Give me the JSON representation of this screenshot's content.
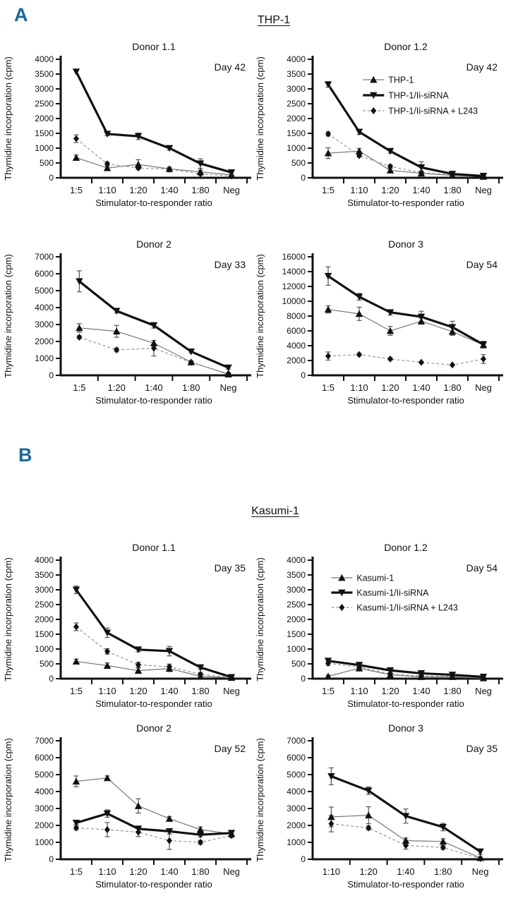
{
  "page": {
    "background": "#ffffff"
  },
  "colors": {
    "panel_letter": "#166a9a",
    "axis": "#111111",
    "thick": "#111111",
    "thin": "#777777",
    "dashed": "#979797",
    "marker": "#111111",
    "error": "#555555"
  },
  "panels": [
    {
      "letter": "A",
      "title": "THP-1"
    },
    {
      "letter": "B",
      "title": "Kasumi-1"
    }
  ],
  "axis_labels": {
    "x": "Stimulator-to-responder ratio",
    "y": "Thymidine incorporation (cpm)"
  },
  "chart_data": [
    {
      "type": "line",
      "panel": "A",
      "title": "Donor 1.1",
      "day": "Day 42",
      "xlabel": "Stimulator-to-responder ratio",
      "ylabel": "Thymidine incorporation (cpm)",
      "ylim": [
        0,
        4000
      ],
      "ystep": 500,
      "categories": [
        "1:5",
        "1:10",
        "1:20",
        "1:40",
        "1:80",
        "Neg"
      ],
      "series": [
        {
          "name": "THP-1",
          "style": "thin",
          "marker": "triangle-up",
          "values": [
            680,
            330,
            450,
            300,
            200,
            100
          ],
          "errors": [
            90,
            60,
            160,
            60,
            60,
            50
          ]
        },
        {
          "name": "THP-1/Ii-siRNA",
          "style": "thick",
          "marker": "triangle-down",
          "values": [
            3580,
            1480,
            1400,
            1000,
            480,
            180
          ],
          "errors": [
            0,
            60,
            110,
            60,
            160,
            90
          ]
        },
        {
          "name": "THP-1/Ii-siRNA + L243",
          "style": "dashed",
          "marker": "diamond",
          "values": [
            1320,
            470,
            330,
            290,
            130,
            60
          ],
          "errors": [
            130,
            60,
            50,
            60,
            50,
            40
          ]
        }
      ],
      "legend": null
    },
    {
      "type": "line",
      "panel": "A",
      "title": "Donor 1.2",
      "day": "Day 42",
      "xlabel": "Stimulator-to-responder ratio",
      "ylabel": "Thymidine incorporation (cpm)",
      "ylim": [
        0,
        4000
      ],
      "ystep": 500,
      "categories": [
        "1:5",
        "1:10",
        "1:20",
        "1:40",
        "1:80",
        "Neg"
      ],
      "series": [
        {
          "name": "THP-1",
          "style": "thin",
          "marker": "triangle-up",
          "values": [
            830,
            900,
            250,
            150,
            80,
            40
          ],
          "errors": [
            180,
            90,
            60,
            50,
            40,
            30
          ]
        },
        {
          "name": "THP-1/Ii-siRNA",
          "style": "thick",
          "marker": "triangle-down",
          "values": [
            3150,
            1550,
            900,
            350,
            130,
            60
          ],
          "errors": [
            90,
            90,
            70,
            190,
            60,
            40
          ]
        },
        {
          "name": "THP-1/Ii-siRNA + L243",
          "style": "dashed",
          "marker": "diamond",
          "values": [
            1480,
            750,
            380,
            170,
            100,
            50
          ],
          "errors": [
            70,
            50,
            60,
            60,
            40,
            30
          ]
        }
      ],
      "legend": {
        "x_frac": 0.27,
        "y_start": 57,
        "dy": 22
      }
    },
    {
      "type": "line",
      "panel": "A",
      "title": "Donor 2",
      "day": "Day 33",
      "xlabel": "Stimulator-to-responder ratio",
      "ylabel": "Thymidine incorporation (cpm)",
      "ylim": [
        0,
        7000
      ],
      "ystep": 1000,
      "categories": [
        "1:5",
        "1:20",
        "1:40",
        "1:80",
        "Neg"
      ],
      "series": [
        {
          "name": "THP-1",
          "style": "thin",
          "marker": "triangle-up",
          "values": [
            2800,
            2600,
            1900,
            780,
            60
          ],
          "errors": [
            250,
            350,
            160,
            90,
            40
          ]
        },
        {
          "name": "THP-1/Ii-siRNA",
          "style": "thick",
          "marker": "triangle-down",
          "values": [
            5550,
            3800,
            2950,
            1400,
            450
          ],
          "errors": [
            620,
            120,
            160,
            70,
            90
          ]
        },
        {
          "name": "THP-1/Ii-siRNA + L243",
          "style": "dashed",
          "marker": "diamond",
          "values": [
            2250,
            1500,
            1600,
            760,
            100
          ],
          "errors": [
            90,
            110,
            460,
            60,
            50
          ]
        }
      ],
      "legend": null
    },
    {
      "type": "line",
      "panel": "A",
      "title": "Donor 3",
      "day": "Day 54",
      "xlabel": "Stimulator-to-responder ratio",
      "ylabel": "Thymidine incorporation (cpm)",
      "ylim": [
        0,
        16000
      ],
      "ystep": 2000,
      "categories": [
        "1:5",
        "1:10",
        "1:20",
        "1:40",
        "1:80",
        "Neg"
      ],
      "series": [
        {
          "name": "THP-1",
          "style": "thin",
          "marker": "triangle-up",
          "values": [
            8900,
            8300,
            6000,
            7300,
            5900,
            4100
          ],
          "errors": [
            500,
            900,
            600,
            400,
            500,
            400
          ]
        },
        {
          "name": "THP-1/Ii-siRNA",
          "style": "thick",
          "marker": "triangle-down",
          "values": [
            13400,
            10600,
            8500,
            7900,
            6500,
            4150
          ],
          "errors": [
            1250,
            450,
            350,
            750,
            800,
            450
          ]
        },
        {
          "name": "THP-1/Ii-siRNA + L243",
          "style": "dashed",
          "marker": "diamond",
          "values": [
            2600,
            2800,
            2200,
            1750,
            1400,
            2200
          ],
          "errors": [
            550,
            180,
            160,
            120,
            90,
            600
          ]
        }
      ],
      "legend": null
    },
    {
      "type": "line",
      "panel": "B",
      "title": "Donor 1.1",
      "day": "Day 35",
      "xlabel": "Stimulator-to-responder ratio",
      "ylabel": "Thymidine incorporation (cpm)",
      "ylim": [
        0,
        4000
      ],
      "ystep": 500,
      "categories": [
        "1:5",
        "1:10",
        "1:20",
        "1:40",
        "1:80",
        "Neg"
      ],
      "series": [
        {
          "name": "Kasumi-1",
          "style": "thin",
          "marker": "triangle-up",
          "values": [
            580,
            440,
            270,
            340,
            80,
            30
          ],
          "errors": [
            80,
            90,
            90,
            100,
            60,
            20
          ]
        },
        {
          "name": "Kasumi-1/Ii-siRNA",
          "style": "thick",
          "marker": "triangle-down",
          "values": [
            3000,
            1550,
            980,
            930,
            380,
            50
          ],
          "errors": [
            130,
            160,
            70,
            160,
            70,
            30
          ]
        },
        {
          "name": "Kasumi-1/Ii-siRNA + L243",
          "style": "dashed",
          "marker": "diamond",
          "values": [
            1750,
            920,
            470,
            400,
            150,
            40
          ],
          "errors": [
            130,
            90,
            80,
            90,
            60,
            30
          ]
        }
      ],
      "legend": null
    },
    {
      "type": "line",
      "panel": "B",
      "title": "Donor 1.2",
      "day": "Day 54",
      "xlabel": "Stimulator-to-responder ratio",
      "ylabel": "Thymidine incorporation (cpm)",
      "ylim": [
        0,
        4000
      ],
      "ystep": 500,
      "categories": [
        "1:5",
        "1:10",
        "1:20",
        "1:40",
        "1:80",
        "Neg"
      ],
      "series": [
        {
          "name": "Kasumi-1",
          "style": "thin",
          "marker": "triangle-up",
          "values": [
            80,
            350,
            130,
            60,
            60,
            20
          ],
          "errors": [
            40,
            70,
            60,
            30,
            30,
            20
          ]
        },
        {
          "name": "Kasumi-1/Ii-siRNA",
          "style": "thick",
          "marker": "triangle-down",
          "values": [
            600,
            460,
            280,
            180,
            130,
            60
          ],
          "errors": [
            90,
            90,
            90,
            70,
            60,
            40
          ]
        },
        {
          "name": "Kasumi-1/Ii-siRNA + L243",
          "style": "dashed",
          "marker": "diamond",
          "values": [
            520,
            390,
            160,
            90,
            80,
            30
          ],
          "errors": [
            70,
            60,
            50,
            40,
            40,
            20
          ]
        }
      ],
      "legend": {
        "x_frac": 0.1,
        "y_start": 53,
        "dy": 21
      }
    },
    {
      "type": "line",
      "panel": "B",
      "title": "Donor 2",
      "day": "Day 52",
      "xlabel": "Stimulator-to-responder ratio",
      "ylabel": "Thymidine incorporation (cpm)",
      "ylim": [
        0,
        7000
      ],
      "ystep": 1000,
      "categories": [
        "1:5",
        "1:10",
        "1:20",
        "1:40",
        "1:80",
        "Neg"
      ],
      "series": [
        {
          "name": "Kasumi-1",
          "style": "thin",
          "marker": "triangle-up",
          "values": [
            4600,
            4800,
            3150,
            2400,
            1750,
            1500
          ],
          "errors": [
            320,
            120,
            420,
            120,
            160,
            100
          ]
        },
        {
          "name": "Kasumi-1/Ii-siRNA",
          "style": "thick",
          "marker": "triangle-down",
          "values": [
            2150,
            2700,
            1800,
            1650,
            1450,
            1550
          ],
          "errors": [
            110,
            220,
            160,
            160,
            130,
            110
          ]
        },
        {
          "name": "Kasumi-1/Ii-siRNA + L243",
          "style": "dashed",
          "marker": "diamond",
          "values": [
            1850,
            1750,
            1600,
            1100,
            1000,
            1400
          ],
          "errors": [
            110,
            420,
            260,
            520,
            110,
            110
          ]
        }
      ],
      "legend": null
    },
    {
      "type": "line",
      "panel": "B",
      "title": "Donor 3",
      "day": "Day 35",
      "xlabel": "Stimulator-to-responder ratio",
      "ylabel": "Thymidine incorporation (cpm)",
      "ylim": [
        0,
        7000
      ],
      "ystep": 1000,
      "categories": [
        "1:10",
        "1:20",
        "1:40",
        "1:80",
        "Neg"
      ],
      "series": [
        {
          "name": "Kasumi-1",
          "style": "thin",
          "marker": "triangle-up",
          "values": [
            2500,
            2600,
            1100,
            1050,
            80
          ],
          "errors": [
            580,
            500,
            160,
            160,
            60
          ]
        },
        {
          "name": "Kasumi-1/Ii-siRNA",
          "style": "thick",
          "marker": "triangle-down",
          "values": [
            4900,
            4050,
            2550,
            1900,
            450
          ],
          "errors": [
            500,
            220,
            420,
            220,
            160
          ]
        },
        {
          "name": "Kasumi-1/Ii-siRNA + L243",
          "style": "dashed",
          "marker": "diamond",
          "values": [
            2100,
            1850,
            820,
            700,
            40
          ],
          "errors": [
            480,
            120,
            220,
            110,
            30
          ]
        }
      ],
      "legend": null
    }
  ]
}
